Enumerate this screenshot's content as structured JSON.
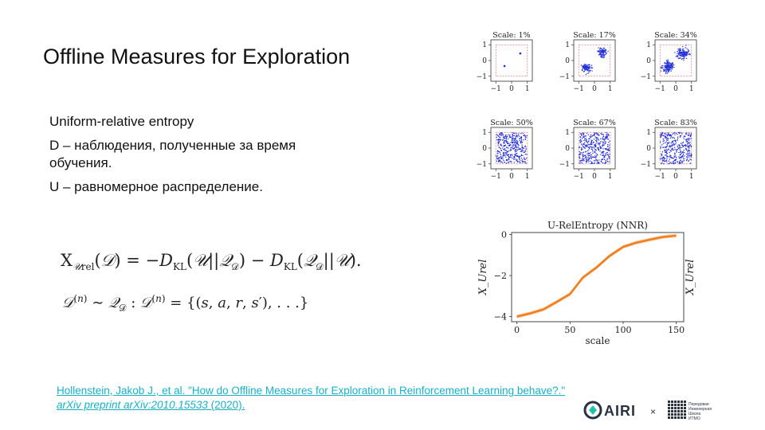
{
  "slide": {
    "title": "Offline Measures for Exploration",
    "bullets": [
      "Uniform-relative entropy",
      "D – наблюдения, полученные за время обучения.",
      "U – равномерное распределение."
    ],
    "reference": {
      "text_main": "Hollenstein, Jakob J., et al. \"How do Offline Measures for Exploration in Reinforcement Learning behave?.\"",
      "text_italic": "arXiv preprint arXiv:2010.15533",
      "text_year": "(2020)."
    },
    "logos": {
      "airi_text": "AIRI",
      "times": "×",
      "school_lines": [
        "Передовая",
        "Инженерная",
        "Школа",
        "ИТМО"
      ]
    }
  },
  "scatter_grid": {
    "titles": [
      "Scale: 1%",
      "Scale: 17%",
      "Scale: 34%",
      "Scale: 50%",
      "Scale: 67%",
      "Scale: 83%"
    ],
    "ytick_labels": [
      "1",
      "0",
      "−1"
    ],
    "xtick_labels": [
      "−1",
      "0",
      "1"
    ],
    "point_color": "#1f2bd6",
    "box_color": "#e57373"
  },
  "chart_data": {
    "type": "line",
    "title": "U-RelEntropy (NNR)",
    "xlabel": "scale",
    "ylabel": "X_Urel",
    "x": [
      0,
      12,
      25,
      37,
      50,
      62,
      75,
      87,
      100,
      112,
      125,
      137,
      150
    ],
    "values": [
      -4.0,
      -3.85,
      -3.65,
      -3.3,
      -2.9,
      -2.1,
      -1.6,
      -1.05,
      -0.6,
      -0.4,
      -0.25,
      -0.12,
      -0.05
    ],
    "xlim": [
      -5,
      157
    ],
    "ylim": [
      -4.25,
      0.1
    ],
    "xticks": [
      0,
      50,
      100,
      150
    ],
    "yticks": [
      0,
      -2,
      -4
    ],
    "xtick_labels": [
      "0",
      "50",
      "100",
      "150"
    ],
    "ytick_labels": [
      "0",
      "−2",
      "−4"
    ],
    "line_color": "#f07f1d",
    "band_color": "#f6b98a",
    "grid": false
  }
}
